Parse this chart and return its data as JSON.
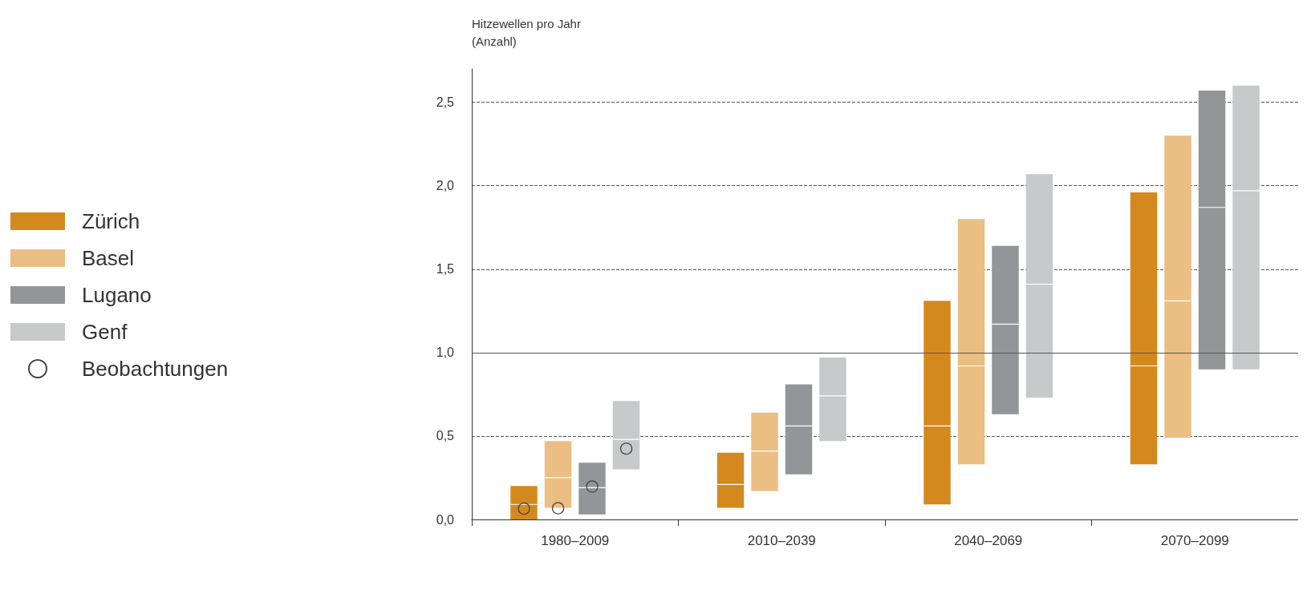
{
  "chart_data": {
    "type": "box",
    "ylabel": "Hitzewellen pro Jahr\n(Anzahl)",
    "categories": [
      "1980–2009",
      "2010–2039",
      "2040–2069",
      "2070–2099"
    ],
    "ylim": [
      0,
      2.7
    ],
    "yticks": [
      {
        "value": 0,
        "label": "0,0"
      },
      {
        "value": 0.5,
        "label": "0,5"
      },
      {
        "value": 1,
        "label": "1,0"
      },
      {
        "value": 1.5,
        "label": "1,5"
      },
      {
        "value": 2,
        "label": "2,0"
      },
      {
        "value": 2.5,
        "label": "2,5"
      }
    ],
    "grid": "y",
    "legend": "left",
    "ref_lines": [
      {
        "axis": "y",
        "value": 1,
        "line_style": "solid",
        "color": "#555555"
      }
    ],
    "series": [
      {
        "name": "Zürich",
        "color": "#d4891e",
        "boxes": [
          {
            "low": 0,
            "q1": 0,
            "median": 0.09,
            "q3": 0.2,
            "high": 0.2
          },
          {
            "low": 0.07,
            "q1": 0.07,
            "median": 0.21,
            "q3": 0.4,
            "high": 0.4
          },
          {
            "low": 0.09,
            "q1": 0.09,
            "median": 0.56,
            "q3": 1.31,
            "high": 1.31
          },
          {
            "low": 0.33,
            "q1": 0.33,
            "median": 0.92,
            "q3": 1.96,
            "high": 1.96
          }
        ]
      },
      {
        "name": "Basel",
        "color": "#ebbe83",
        "boxes": [
          {
            "low": 0.07,
            "q1": 0.07,
            "median": 0.25,
            "q3": 0.47,
            "high": 0.47
          },
          {
            "low": 0.17,
            "q1": 0.17,
            "median": 0.41,
            "q3": 0.64,
            "high": 0.64
          },
          {
            "low": 0.33,
            "q1": 0.33,
            "median": 0.92,
            "q3": 1.8,
            "high": 1.8
          },
          {
            "low": 0.49,
            "q1": 0.49,
            "median": 1.31,
            "q3": 2.3,
            "high": 2.3
          }
        ]
      },
      {
        "name": "Lugano",
        "color": "#939598",
        "boxes": [
          {
            "low": 0.03,
            "q1": 0.03,
            "median": 0.19,
            "q3": 0.34,
            "high": 0.34
          },
          {
            "low": 0.27,
            "q1": 0.27,
            "median": 0.56,
            "q3": 0.81,
            "high": 0.81
          },
          {
            "low": 0.63,
            "q1": 0.63,
            "median": 1.17,
            "q3": 1.64,
            "high": 1.64
          },
          {
            "low": 0.9,
            "q1": 0.9,
            "median": 1.87,
            "q3": 2.57,
            "high": 2.57
          }
        ]
      },
      {
        "name": "Genf",
        "color": "#c8c9cb",
        "boxes": [
          {
            "low": 0.3,
            "q1": 0.3,
            "median": 0.48,
            "q3": 0.71,
            "high": 0.71
          },
          {
            "low": 0.47,
            "q1": 0.47,
            "median": 0.74,
            "q3": 0.97,
            "high": 0.97
          },
          {
            "low": 0.73,
            "q1": 0.73,
            "median": 1.41,
            "q3": 2.07,
            "high": 2.07
          },
          {
            "low": 0.9,
            "q1": 0.9,
            "median": 1.97,
            "q3": 2.6,
            "high": 2.6
          }
        ]
      },
      {
        "name": "Beobachtungen",
        "type": "scatter",
        "marker": "circle",
        "color": "#444444",
        "x": [
          "1980–2009",
          "1980–2009",
          "1980–2009",
          "1980–2009"
        ],
        "values": [
          0.07,
          0.07,
          0.2,
          0.43
        ]
      }
    ]
  }
}
